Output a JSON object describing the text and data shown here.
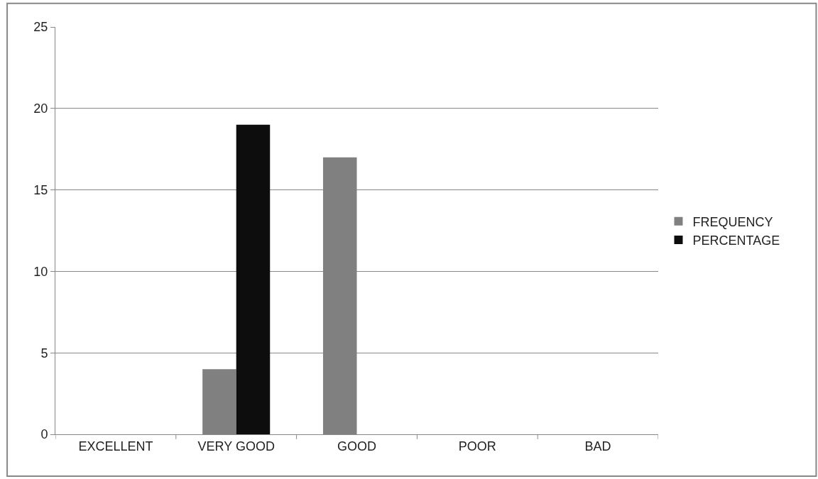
{
  "chart_data": {
    "type": "bar",
    "categories": [
      "EXCELLENT",
      "VERY GOOD",
      "GOOD",
      "POOR",
      "BAD"
    ],
    "series": [
      {
        "name": "FREQUENCY",
        "color": "#808080",
        "values": [
          0,
          4,
          17,
          0,
          0
        ]
      },
      {
        "name": "PERCENTAGE",
        "color": "#0d0d0d",
        "values": [
          0,
          19,
          0,
          0,
          0
        ]
      }
    ],
    "ylim": [
      0,
      25
    ],
    "yticks": [
      0,
      5,
      10,
      15,
      20,
      25
    ],
    "grid": "y",
    "legend": "right"
  }
}
